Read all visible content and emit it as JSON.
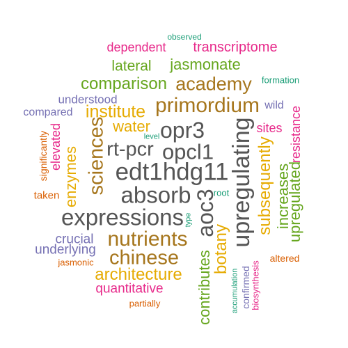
{
  "colors": {
    "teal": "#1b9e77",
    "orange": "#d95f02",
    "purple": "#7570b3",
    "magenta": "#e7298a",
    "green": "#66a61e",
    "gold": "#e6ab02",
    "brown": "#a6761d",
    "gray": "#555555"
  },
  "words": [
    {
      "text": "observed",
      "color": "teal"
    },
    {
      "text": "dependent",
      "color": "magenta"
    },
    {
      "text": "transcriptome",
      "color": "magenta"
    },
    {
      "text": "lateral",
      "color": "green"
    },
    {
      "text": "jasmonate",
      "color": "green"
    },
    {
      "text": "formation",
      "color": "teal"
    },
    {
      "text": "comparison",
      "color": "green"
    },
    {
      "text": "academy",
      "color": "brown"
    },
    {
      "text": "understood",
      "color": "purple"
    },
    {
      "text": "primordium",
      "color": "brown"
    },
    {
      "text": "wild",
      "color": "purple"
    },
    {
      "text": "compared",
      "color": "purple"
    },
    {
      "text": "institute",
      "color": "gold"
    },
    {
      "text": "water",
      "color": "gold"
    },
    {
      "text": "level",
      "color": "teal"
    },
    {
      "text": "opr3",
      "color": "gray"
    },
    {
      "text": "sites",
      "color": "magenta"
    },
    {
      "text": "resistance",
      "color": "magenta"
    },
    {
      "text": "significantly",
      "color": "orange"
    },
    {
      "text": "elevated",
      "color": "magenta"
    },
    {
      "text": "enzymes",
      "color": "gold"
    },
    {
      "text": "sciences",
      "color": "brown"
    },
    {
      "text": "rt-pcr",
      "color": "gray"
    },
    {
      "text": "opcl1",
      "color": "gray"
    },
    {
      "text": "upregulating",
      "color": "gray"
    },
    {
      "text": "subsequently",
      "color": "gold"
    },
    {
      "text": "increases",
      "color": "green"
    },
    {
      "text": "upregulated",
      "color": "green"
    },
    {
      "text": "edt1hdg11",
      "color": "gray"
    },
    {
      "text": "absorb",
      "color": "gray"
    },
    {
      "text": "aoc3",
      "color": "gray"
    },
    {
      "text": "root",
      "color": "teal"
    },
    {
      "text": "taken",
      "color": "orange"
    },
    {
      "text": "expressions",
      "color": "gray"
    },
    {
      "text": "type",
      "color": "teal"
    },
    {
      "text": "botany",
      "color": "gold"
    },
    {
      "text": "crucial",
      "color": "purple"
    },
    {
      "text": "nutrients",
      "color": "brown"
    },
    {
      "text": "underlying",
      "color": "purple"
    },
    {
      "text": "jasmonic",
      "color": "orange"
    },
    {
      "text": "chinese",
      "color": "brown"
    },
    {
      "text": "contributes",
      "color": "green"
    },
    {
      "text": "accumulation",
      "color": "teal"
    },
    {
      "text": "confirmed",
      "color": "purple"
    },
    {
      "text": "biosynthesis",
      "color": "magenta"
    },
    {
      "text": "altered",
      "color": "orange"
    },
    {
      "text": "architecture",
      "color": "gold"
    },
    {
      "text": "quantitative",
      "color": "magenta"
    },
    {
      "text": "partially",
      "color": "orange"
    }
  ]
}
